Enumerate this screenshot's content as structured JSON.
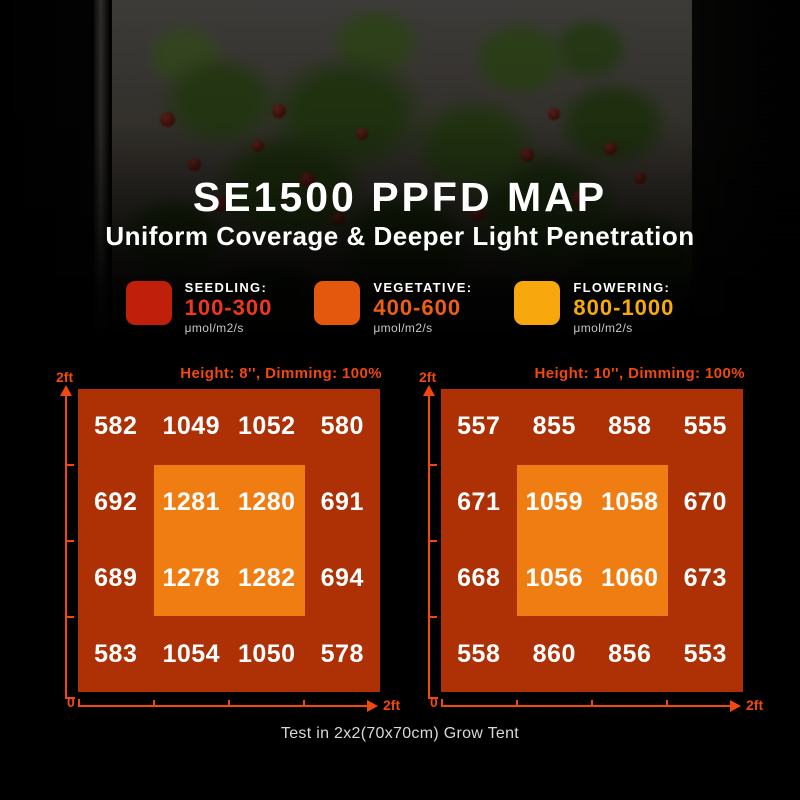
{
  "page": {
    "title": "SE1500 PPFD MAP",
    "subtitle": "Uniform Coverage & Deeper Light Penetration",
    "footer": "Test in 2x2(70x70cm) Grow Tent"
  },
  "legend": {
    "items": [
      {
        "label": "SEEDLING:",
        "range": "100-300",
        "unit": "μmol/m2/s",
        "swatch_color": "#c01f0b",
        "range_color": "#ee3916"
      },
      {
        "label": "VEGETATIVE:",
        "range": "400-600",
        "unit": "μmol/m2/s",
        "swatch_color": "#e4580d",
        "range_color": "#f05f10"
      },
      {
        "label": "FLOWERING:",
        "range": "800-1000",
        "unit": "μmol/m2/s",
        "swatch_color": "#f8a70c",
        "range_color": "#f8ab08"
      }
    ]
  },
  "chart_data": [
    {
      "type": "heatmap",
      "title": "Height: 8'', Dimming: 100%",
      "unit": "μmol/m2/s",
      "x_axis": {
        "origin_label": "0",
        "max_label": "2ft"
      },
      "y_axis": {
        "max_label": "2ft"
      },
      "grid": "4x4 over 2ft x 2ft test area, inner 2x2 cells highlighted",
      "values": [
        [
          582,
          1049,
          1052,
          580
        ],
        [
          692,
          1281,
          1280,
          691
        ],
        [
          689,
          1278,
          1282,
          694
        ],
        [
          583,
          1054,
          1050,
          578
        ]
      ]
    },
    {
      "type": "heatmap",
      "title": "Height: 10'', Dimming: 100%",
      "unit": "μmol/m2/s",
      "x_axis": {
        "origin_label": "0",
        "max_label": "2ft"
      },
      "y_axis": {
        "max_label": "2ft"
      },
      "grid": "4x4 over 2ft x 2ft test area, inner 2x2 cells highlighted",
      "values": [
        [
          557,
          855,
          858,
          555
        ],
        [
          671,
          1059,
          1058,
          670
        ],
        [
          668,
          1056,
          1060,
          673
        ],
        [
          558,
          860,
          856,
          553
        ]
      ]
    }
  ],
  "colors": {
    "map_bg": "#ad3105",
    "map_inner": "#f07d12",
    "axis": "#f0480f",
    "value_text": "#ffffff"
  }
}
